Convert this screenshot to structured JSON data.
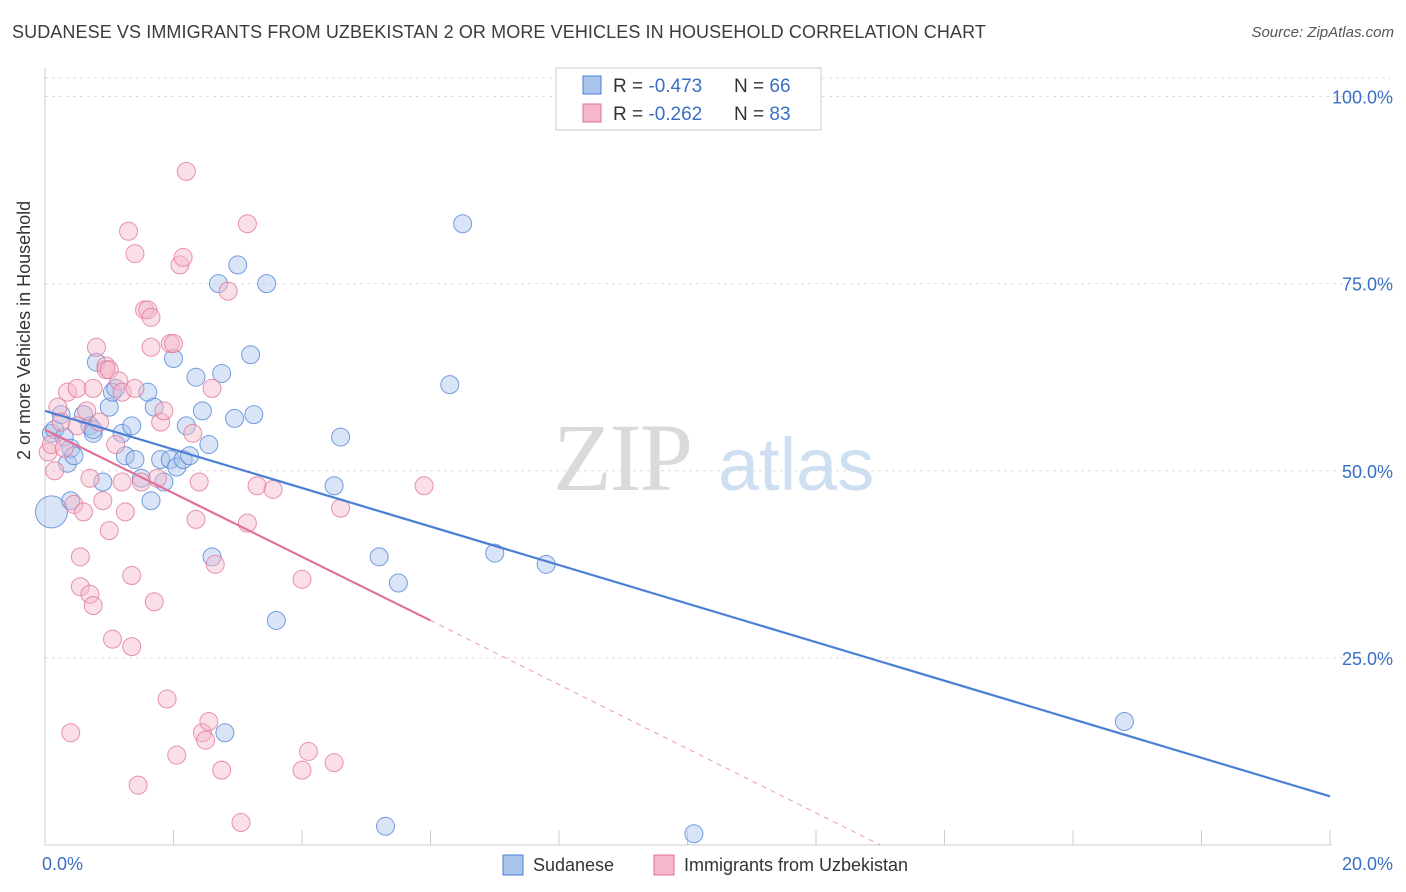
{
  "title": "SUDANESE VS IMMIGRANTS FROM UZBEKISTAN 2 OR MORE VEHICLES IN HOUSEHOLD CORRELATION CHART",
  "source": "Source: ZipAtlas.com",
  "watermark": {
    "zip": "ZIP",
    "atlas": "atlas"
  },
  "colors": {
    "blue": "#4a7fd4",
    "blue_fill": "#aac4ec",
    "pink": "#e07098",
    "pink_fill": "#f4b8ca",
    "value_text": "#3a6fc4"
  },
  "chart_data": {
    "type": "scatter",
    "title": "SUDANESE VS IMMIGRANTS FROM UZBEKISTAN 2 OR MORE VEHICLES IN HOUSEHOLD CORRELATION CHART",
    "xlabel": "",
    "ylabel": "2 or more Vehicles in Household",
    "xlim": [
      0,
      20
    ],
    "ylim": [
      0,
      100
    ],
    "x_tick_labels": [
      "0.0%",
      "20.0%"
    ],
    "y_tick_values": [
      25,
      50,
      75,
      100
    ],
    "y_tick_labels": [
      "25.0%",
      "50.0%",
      "75.0%",
      "100.0%"
    ],
    "grid": true,
    "legend_position": "bottom",
    "stats": [
      {
        "r_label": "R = ",
        "r": "-0.473",
        "n_label": "N = ",
        "n": "66"
      },
      {
        "r_label": "R = ",
        "r": "-0.262",
        "n_label": "N = ",
        "n": "83"
      }
    ],
    "series": [
      {
        "name": "Sudanese",
        "color": "#4a7fd4",
        "trend": {
          "x": [
            0,
            20
          ],
          "y": [
            58,
            6.5
          ],
          "dashed_to": null
        },
        "points": [
          [
            0.1,
            44.5
          ],
          [
            0.1,
            55
          ],
          [
            0.15,
            55.5
          ],
          [
            0.25,
            57.5
          ],
          [
            0.3,
            54.5
          ],
          [
            0.35,
            51
          ],
          [
            0.4,
            53
          ],
          [
            0.4,
            46
          ],
          [
            0.45,
            52
          ],
          [
            0.6,
            57.5
          ],
          [
            0.7,
            56
          ],
          [
            0.75,
            55
          ],
          [
            0.75,
            55.5
          ],
          [
            0.8,
            64.5
          ],
          [
            0.9,
            48.5
          ],
          [
            1.0,
            58.5
          ],
          [
            1.05,
            60.5
          ],
          [
            1.1,
            61
          ],
          [
            1.2,
            55
          ],
          [
            1.25,
            52
          ],
          [
            1.35,
            56
          ],
          [
            1.4,
            51.5
          ],
          [
            1.5,
            49
          ],
          [
            1.6,
            60.5
          ],
          [
            1.65,
            46
          ],
          [
            1.7,
            58.5
          ],
          [
            1.8,
            51.5
          ],
          [
            1.85,
            48.5
          ],
          [
            1.95,
            51.5
          ],
          [
            2.0,
            65
          ],
          [
            2.05,
            50.5
          ],
          [
            2.15,
            51.5
          ],
          [
            2.2,
            56
          ],
          [
            2.25,
            52
          ],
          [
            2.35,
            62.5
          ],
          [
            2.45,
            58
          ],
          [
            2.55,
            53.5
          ],
          [
            2.6,
            38.5
          ],
          [
            2.7,
            75
          ],
          [
            2.75,
            63
          ],
          [
            2.8,
            15
          ],
          [
            2.95,
            57
          ],
          [
            3.0,
            77.5
          ],
          [
            3.2,
            65.5
          ],
          [
            3.25,
            57.5
          ],
          [
            3.45,
            75
          ],
          [
            3.6,
            30
          ],
          [
            4.5,
            48
          ],
          [
            4.6,
            54.5
          ],
          [
            5.2,
            38.5
          ],
          [
            5.3,
            2.5
          ],
          [
            5.5,
            35
          ],
          [
            6.3,
            61.5
          ],
          [
            6.5,
            83
          ],
          [
            7.0,
            39
          ],
          [
            7.8,
            37.5
          ],
          [
            10.1,
            1.5
          ],
          [
            16.8,
            16.5
          ]
        ]
      },
      {
        "name": "Immigrants from Uzbekistan",
        "color": "#e07098",
        "trend": {
          "x": [
            0,
            6
          ],
          "y": [
            55.5,
            30
          ],
          "dashed_to": [
            13,
            0
          ]
        },
        "points": [
          [
            0.05,
            52.5
          ],
          [
            0.1,
            53.5
          ],
          [
            0.15,
            50
          ],
          [
            0.2,
            58.5
          ],
          [
            0.25,
            56.5
          ],
          [
            0.3,
            53
          ],
          [
            0.35,
            60.5
          ],
          [
            0.4,
            15
          ],
          [
            0.45,
            45.5
          ],
          [
            0.5,
            61
          ],
          [
            0.5,
            56
          ],
          [
            0.55,
            38.5
          ],
          [
            0.55,
            34.5
          ],
          [
            0.6,
            44.5
          ],
          [
            0.65,
            58
          ],
          [
            0.7,
            33.5
          ],
          [
            0.7,
            49
          ],
          [
            0.75,
            32
          ],
          [
            0.75,
            61
          ],
          [
            0.8,
            66.5
          ],
          [
            0.85,
            56.5
          ],
          [
            0.9,
            46
          ],
          [
            0.95,
            64
          ],
          [
            0.95,
            63.5
          ],
          [
            1.0,
            63.5
          ],
          [
            1.0,
            42
          ],
          [
            1.05,
            27.5
          ],
          [
            1.1,
            53.5
          ],
          [
            1.15,
            62
          ],
          [
            1.2,
            60.5
          ],
          [
            1.2,
            48.5
          ],
          [
            1.25,
            44.5
          ],
          [
            1.3,
            82
          ],
          [
            1.35,
            36
          ],
          [
            1.35,
            26.5
          ],
          [
            1.4,
            79
          ],
          [
            1.4,
            61
          ],
          [
            1.45,
            8
          ],
          [
            1.5,
            48.5
          ],
          [
            1.55,
            71.5
          ],
          [
            1.6,
            71.5
          ],
          [
            1.65,
            66.5
          ],
          [
            1.65,
            70.5
          ],
          [
            1.7,
            32.5
          ],
          [
            1.75,
            49
          ],
          [
            1.8,
            56.5
          ],
          [
            1.85,
            58
          ],
          [
            1.9,
            19.5
          ],
          [
            1.95,
            67
          ],
          [
            2.0,
            67
          ],
          [
            2.05,
            12
          ],
          [
            2.1,
            77.5
          ],
          [
            2.15,
            78.5
          ],
          [
            2.2,
            90
          ],
          [
            2.3,
            55
          ],
          [
            2.35,
            43.5
          ],
          [
            2.4,
            48.5
          ],
          [
            2.45,
            15
          ],
          [
            2.5,
            14
          ],
          [
            2.55,
            16.5
          ],
          [
            2.6,
            61
          ],
          [
            2.65,
            37.5
          ],
          [
            2.75,
            10
          ],
          [
            2.85,
            74
          ],
          [
            3.05,
            3
          ],
          [
            3.15,
            83
          ],
          [
            3.15,
            43
          ],
          [
            3.3,
            48
          ],
          [
            3.55,
            47.5
          ],
          [
            4.0,
            35.5
          ],
          [
            4.0,
            10
          ],
          [
            4.1,
            12.5
          ],
          [
            4.5,
            11
          ],
          [
            4.6,
            45
          ],
          [
            5.9,
            48
          ]
        ]
      }
    ]
  }
}
